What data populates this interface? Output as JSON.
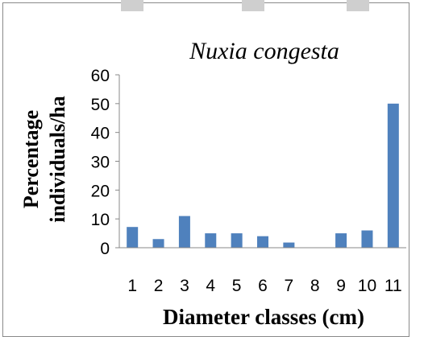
{
  "chart_data": {
    "type": "bar",
    "title": "Nuxia congesta",
    "xlabel": "Diameter classes (cm)",
    "ylabel_lines": [
      "Percentage",
      "individuals/ha"
    ],
    "categories": [
      "1",
      "2",
      "3",
      "4",
      "5",
      "6",
      "7",
      "8",
      "9",
      "10",
      "11"
    ],
    "series": [
      {
        "values": [
          7.2,
          3.0,
          11.0,
          5.0,
          5.0,
          4.0,
          1.8,
          0,
          5.0,
          6.0,
          50.0
        ]
      }
    ],
    "ylim": [
      0,
      60
    ],
    "yticks": [
      "0",
      "10",
      "20",
      "30",
      "40",
      "50",
      "60"
    ],
    "grid": false,
    "bar_color": "#4f81bd"
  }
}
